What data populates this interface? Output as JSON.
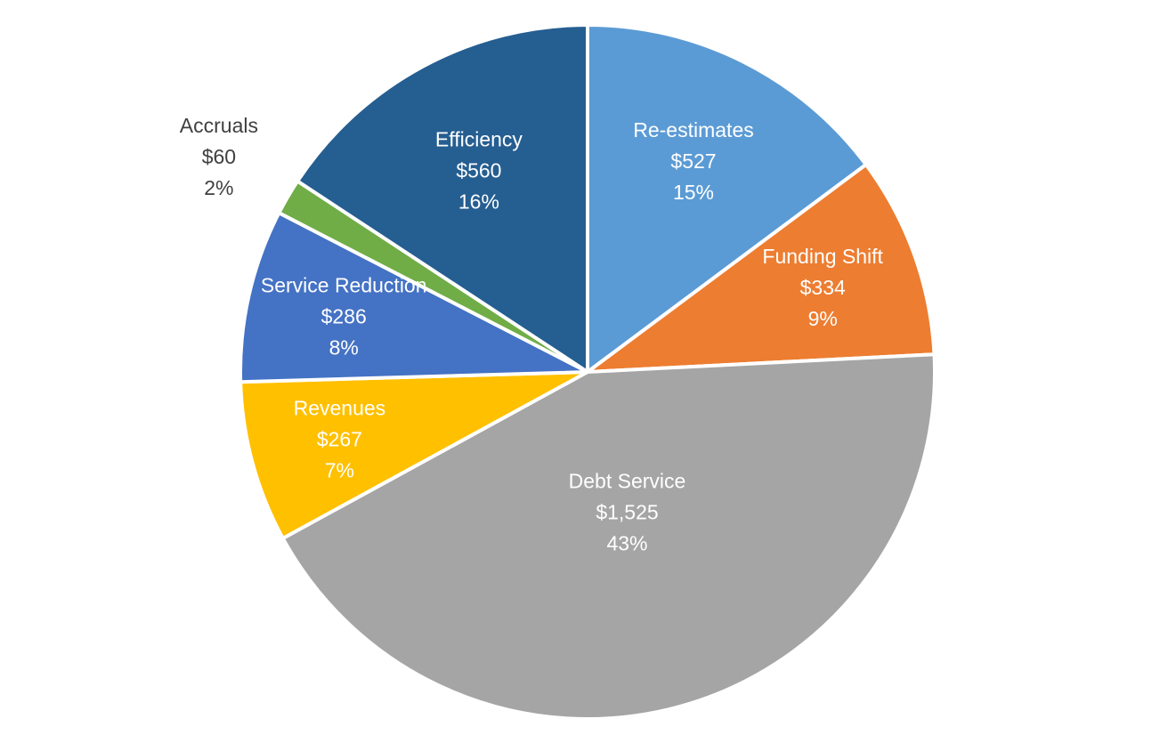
{
  "chart_data": {
    "type": "pie",
    "title": "",
    "start_angle_deg": 0,
    "direction": "clockwise",
    "slices": [
      {
        "name": "Re-estimates",
        "value": 527,
        "value_label": "$527",
        "percent_label": "15%",
        "color": "#5B9BD5"
      },
      {
        "name": "Funding Shift",
        "value": 334,
        "value_label": "$334",
        "percent_label": "9%",
        "color": "#ED7D31"
      },
      {
        "name": "Debt Service",
        "value": 1525,
        "value_label": "$1,525",
        "percent_label": "43%",
        "color": "#A5A5A5"
      },
      {
        "name": "Revenues",
        "value": 267,
        "value_label": "$267",
        "percent_label": "7%",
        "color": "#FFC000"
      },
      {
        "name": "Service Reduction",
        "value": 286,
        "value_label": "$286",
        "percent_label": "8%",
        "color": "#4472C4"
      },
      {
        "name": "Accruals",
        "value": 60,
        "value_label": "$60",
        "percent_label": "2%",
        "color": "#70AD47"
      },
      {
        "name": "Efficiency",
        "value": 560,
        "value_label": "$560",
        "percent_label": "16%",
        "color": "#255E91"
      }
    ]
  }
}
